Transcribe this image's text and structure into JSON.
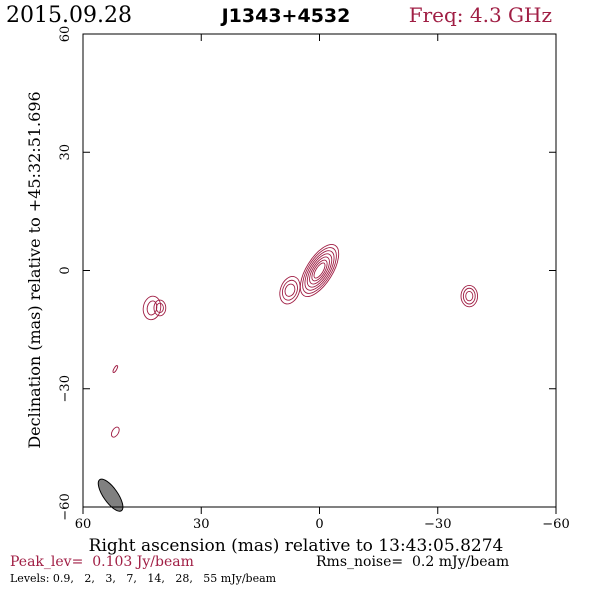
{
  "header": {
    "date": "2015.09.28",
    "source": "J1343+4532",
    "freq": "Freq: 4.3 GHz"
  },
  "colors": {
    "contour": "#a01e44",
    "frame": "#000000",
    "beam_fill": "#808080"
  },
  "chart_data": {
    "type": "contour",
    "xlabel": "Right ascension (mas) relative to 13:43:05.8274",
    "ylabel": "Declination (mas) relative to +45:32:51.696",
    "xlim": [
      60,
      -60
    ],
    "ylim": [
      -60,
      60
    ],
    "xticks": [
      60,
      30,
      0,
      -30,
      -60
    ],
    "yticks": [
      60,
      30,
      0,
      -30,
      -60
    ],
    "xtick_labels": [
      "60",
      "30",
      "0",
      "−30",
      "−60"
    ],
    "ytick_labels": [
      "60",
      "30",
      "0",
      "−30",
      "−60"
    ],
    "peak_label": "Peak_lev=  0.103 Jy/beam",
    "rms_label": "Rms_noise=  0.2 mJy/beam",
    "levels_label": "Levels: 0.9,   2,   3,   7,   14,   28,   55 mJy/beam",
    "levels_mJy": [
      0.9,
      2,
      3,
      7,
      14,
      28,
      55
    ],
    "peak_Jy_per_beam": 0.103,
    "rms_mJy_per_beam": 0.2,
    "beam": {
      "x": 53,
      "y": -57,
      "major": 4.8,
      "minor": 1.8,
      "pa_deg": 35
    },
    "components": [
      {
        "name": "core",
        "x": 0,
        "y": 0,
        "major": [
          2.2,
          3.0,
          3.9,
          4.8,
          5.7,
          6.6,
          7.5
        ],
        "minor": [
          0.9,
          1.3,
          1.7,
          2.1,
          2.5,
          2.9,
          3.3
        ],
        "pa_deg": 32
      },
      {
        "name": "knot-east",
        "x": 7.5,
        "y": -5.0,
        "major": [
          1.6,
          2.6,
          3.6
        ],
        "minor": [
          1.2,
          1.8,
          2.4
        ],
        "pa_deg": 20
      },
      {
        "name": "knot-west",
        "x": -38,
        "y": -6.5,
        "major": [
          1.2,
          2.0,
          2.7
        ],
        "minor": [
          0.9,
          1.5,
          2.1
        ],
        "pa_deg": 0
      },
      {
        "name": "knot-southeast-a",
        "x": 40.5,
        "y": -9.5,
        "major": [
          1.2,
          2.0
        ],
        "minor": [
          0.9,
          1.5
        ],
        "pa_deg": 0
      },
      {
        "name": "knot-southeast-b",
        "x": 42.5,
        "y": -9.5,
        "major": [
          1.8,
          3.0
        ],
        "minor": [
          1.2,
          2.2
        ],
        "pa_deg": 10
      },
      {
        "name": "blob-a",
        "x": 51.8,
        "y": -25.0,
        "major": [
          1.0
        ],
        "minor": [
          0.35
        ],
        "pa_deg": 30
      },
      {
        "name": "blob-b",
        "x": 51.8,
        "y": -41.0,
        "major": [
          1.4
        ],
        "minor": [
          0.8
        ],
        "pa_deg": 30
      }
    ]
  }
}
